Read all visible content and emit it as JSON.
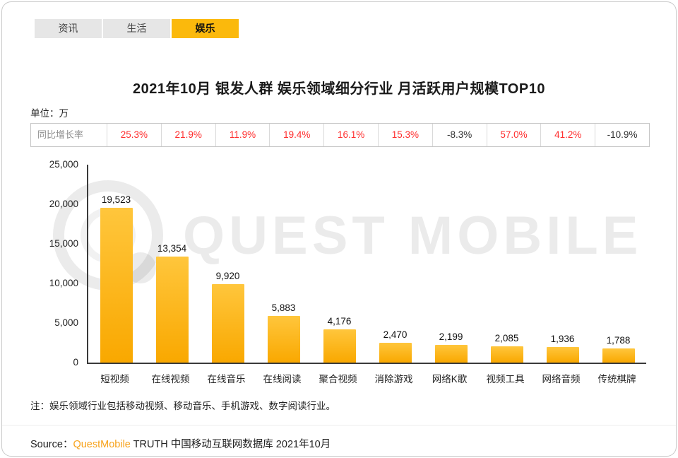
{
  "tabs": [
    {
      "key": "news",
      "label": "资讯",
      "active": false
    },
    {
      "key": "life",
      "label": "生活",
      "active": false
    },
    {
      "key": "entertainment",
      "label": "娱乐",
      "active": true
    }
  ],
  "title": "2021年10月 银发人群 娱乐领域细分行业 月活跃用户规模TOP10",
  "unit_label": "单位：万",
  "growth_row": {
    "label": "同比增长率"
  },
  "chart_data": {
    "type": "bar",
    "title": "2021年10月 银发人群 娱乐领域细分行业 月活跃用户规模TOP10",
    "xlabel": "",
    "ylabel": "单位：万",
    "ylim": [
      0,
      25000
    ],
    "grid": false,
    "legend": "none",
    "categories": [
      "短视频",
      "在线视频",
      "在线音乐",
      "在线阅读",
      "聚合视频",
      "消除游戏",
      "网络K歌",
      "视频工具",
      "网络音频",
      "传统棋牌"
    ],
    "values": [
      19523,
      13354,
      9920,
      5883,
      4176,
      2470,
      2199,
      2085,
      1936,
      1788
    ],
    "value_labels": [
      "19,523",
      "13,354",
      "9,920",
      "5,883",
      "4,176",
      "2,470",
      "2,199",
      "2,085",
      "1,936",
      "1,788"
    ],
    "yoy_growth": [
      "25.3%",
      "21.9%",
      "11.9%",
      "19.4%",
      "16.1%",
      "15.3%",
      "-8.3%",
      "57.0%",
      "41.2%",
      "-10.9%"
    ],
    "yticks": [
      "25,000",
      "20,000",
      "15,000",
      "10,000",
      "5,000",
      "0"
    ]
  },
  "watermark": "QUEST MOBILE",
  "note": "注：娱乐领域行业包括移动视频、移动音乐、手机游戏、数字阅读行业。",
  "source": {
    "prefix": "Source：",
    "brand": "QuestMobile",
    "suffix": " TRUTH 中国移动互联网数据库 2021年10月"
  },
  "colors": {
    "accent": "#FBB90C",
    "bar_top": "#FFC63C",
    "bar_bottom": "#F9A800",
    "positive_growth": "#FF2D2D",
    "negative_growth": "#333333",
    "brand_orange": "#F7A21A"
  }
}
